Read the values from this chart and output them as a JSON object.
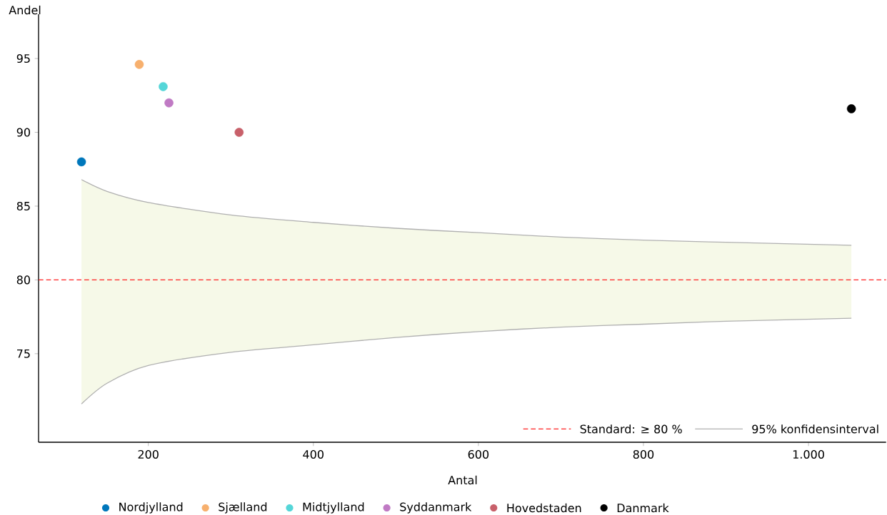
{
  "chart_data": {
    "type": "scatter",
    "xlabel": "Antal",
    "ylabel": "Andel",
    "legend": "bottom",
    "xlim": [
      67,
      1094
    ],
    "ylim": [
      69,
      98
    ],
    "xticks": [
      200,
      400,
      600,
      800,
      {
        "value": 1000,
        "label": "1.000"
      }
    ],
    "yticks": [
      75,
      80,
      85,
      90,
      95
    ],
    "ref_lines": [
      {
        "axis": "y",
        "value": 80,
        "label": "Standard: ≥ 80 %",
        "color": "#ff2020",
        "line_style": "dashed"
      }
    ],
    "series": [
      {
        "name": "Nordjylland",
        "color": "#0077bb",
        "x": [
          119
        ],
        "values": [
          88.0
        ]
      },
      {
        "name": "Sjælland",
        "color": "#f7b06e",
        "x": [
          189
        ],
        "values": [
          94.6
        ]
      },
      {
        "name": "Midtjylland",
        "color": "#55d6d8",
        "x": [
          218
        ],
        "values": [
          93.1
        ]
      },
      {
        "name": "Syddanmark",
        "color": "#c07ac4",
        "x": [
          225
        ],
        "values": [
          92.0
        ]
      },
      {
        "name": "Hovedstaden",
        "color": "#c8606a",
        "x": [
          310
        ],
        "values": [
          90.0
        ]
      },
      {
        "name": "Danmark",
        "color": "#000000",
        "x": [
          1052
        ],
        "values": [
          91.6
        ]
      },
      {
        "name": "95% konfidensinterval",
        "type": "line",
        "marker": "none",
        "color": "#b0b0b0",
        "x": [
          119,
          150,
          200,
          300,
          400,
          500,
          600,
          700,
          800,
          900,
          1052
        ],
        "values": [
          86.8,
          86.0,
          85.25,
          84.4,
          83.9,
          83.5,
          83.2,
          82.9,
          82.7,
          82.55,
          82.35
        ],
        "upper": [
          86.8,
          86.0,
          85.25,
          84.4,
          83.9,
          83.5,
          83.2,
          82.9,
          82.7,
          82.55,
          82.35
        ],
        "lower": [
          71.6,
          73.0,
          74.2,
          75.1,
          75.6,
          76.1,
          76.5,
          76.8,
          77.0,
          77.2,
          77.4
        ]
      },
      {
        "type": "line",
        "marker": "none",
        "color": "#b0b0b0",
        "x": [
          119,
          150,
          200,
          300,
          400,
          500,
          600,
          700,
          800,
          900,
          1052
        ],
        "values": [
          71.6,
          73.0,
          74.2,
          75.1,
          75.6,
          76.1,
          76.5,
          76.8,
          77.0,
          77.2,
          77.4
        ]
      }
    ]
  }
}
